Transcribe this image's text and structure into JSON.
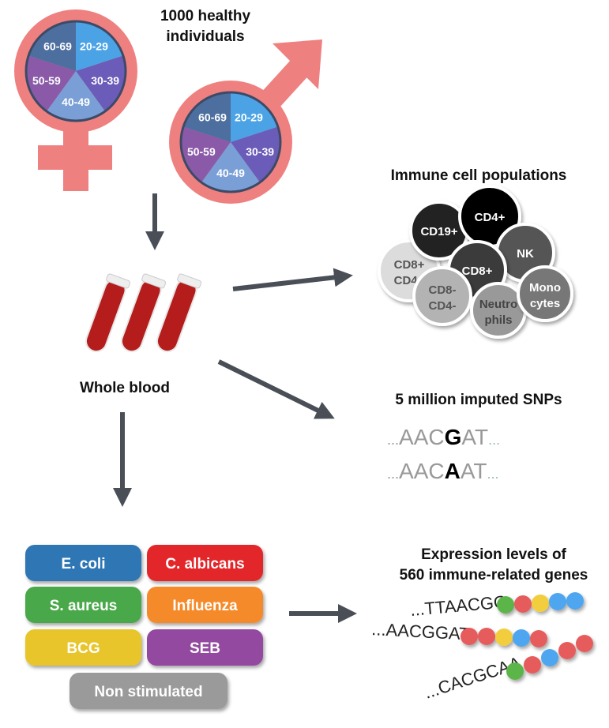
{
  "cohort": {
    "title_line1": "1000 healthy",
    "title_line2": "individuals",
    "age_groups": [
      "20-29",
      "30-39",
      "40-49",
      "50-59",
      "60-69"
    ],
    "age_colors": [
      "#4ba3e6",
      "#6a5cb8",
      "#7a9fd6",
      "#8a5aa8",
      "#4d6f9f"
    ],
    "symbol_color": "#ef8080"
  },
  "blood": {
    "label": "Whole blood"
  },
  "cells": {
    "title": "Immune cell populations",
    "items": [
      {
        "label1": "CD8+",
        "label2": "CD4+",
        "fill": "#dcdcdc",
        "text": "#555"
      },
      {
        "label1": "CD19+",
        "label2": "",
        "fill": "#222",
        "text": "#fff"
      },
      {
        "label1": "CD4+",
        "label2": "",
        "fill": "#000",
        "text": "#fff"
      },
      {
        "label1": "NK",
        "label2": "",
        "fill": "#555",
        "text": "#fff"
      },
      {
        "label1": "CD8+",
        "label2": "",
        "fill": "#3a3a3a",
        "text": "#fff"
      },
      {
        "label1": "CD8-",
        "label2": "CD4-",
        "fill": "#b3b3b3",
        "text": "#555"
      },
      {
        "label1": "Neutro",
        "label2": "phils",
        "fill": "#999",
        "text": "#444"
      },
      {
        "label1": "Mono",
        "label2": "cytes",
        "fill": "#777",
        "text": "#fff"
      }
    ]
  },
  "snps": {
    "title": "5 million imputed SNPs",
    "seq1": {
      "prefix": "...",
      "left": "AAC",
      "allele": "G",
      "right": "AT",
      "suffix": "..."
    },
    "seq2": {
      "prefix": "...",
      "left": "AAC",
      "allele": "A",
      "right": "AT",
      "suffix": "..."
    }
  },
  "stimuli": [
    {
      "label": "E. coli",
      "color": "#2f76b4"
    },
    {
      "label": "C. albicans",
      "color": "#e3262b"
    },
    {
      "label": "S. aureus",
      "color": "#4aa84a"
    },
    {
      "label": "Influenza",
      "color": "#f58a2a"
    },
    {
      "label": "BCG",
      "color": "#e8c52a"
    },
    {
      "label": "SEB",
      "color": "#9448a0"
    },
    {
      "label": "Non stimulated",
      "color": "#9a9a9a"
    }
  ],
  "expression": {
    "title_line1": "Expression levels of",
    "title_line2": "560 immune-related genes",
    "strands": [
      {
        "seq": "...TTAACGG",
        "beads": [
          "#5cb548",
          "#e65c5c",
          "#f2cd3c",
          "#4ea6ef",
          "#4ea6ef"
        ]
      },
      {
        "seq": "...AACGGAT",
        "beads": [
          "#e65c5c",
          "#e65c5c",
          "#f2cd3c",
          "#4ea6ef",
          "#e65c5c"
        ]
      },
      {
        "seq": "...CACGCAA",
        "beads": [
          "#5cb548",
          "#e65c5c",
          "#4ea6ef",
          "#e65c5c",
          "#e65c5c"
        ]
      }
    ]
  }
}
